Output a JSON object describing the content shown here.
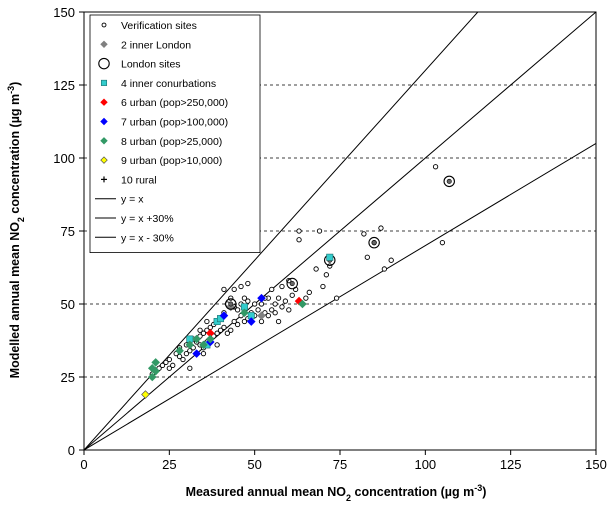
{
  "chart_data": {
    "type": "scatter",
    "xlabel": "Measured annual mean NO<sub>2</sub> concentration (µg m<sup>-3</sup>)",
    "ylabel": "Modelled annual mean NO<sub>2</sub> concentration (µg m<sup>-3</sup>)",
    "xlabel_parts": [
      "Measured annual mean NO",
      "2",
      " concentration (µg m",
      "-3",
      ")"
    ],
    "ylabel_parts": [
      "Modelled annual mean NO",
      "2",
      " concentration (µg m",
      "-3",
      ")"
    ],
    "xlim": [
      0,
      150
    ],
    "ylim": [
      0,
      150
    ],
    "xticks": [
      0,
      25,
      50,
      75,
      100,
      125,
      150
    ],
    "yticks": [
      0,
      25,
      50,
      75,
      100,
      125,
      150
    ],
    "grid": "horizontal-dashed",
    "legend_position": "top-left",
    "series": [
      {
        "name": "Verification sites",
        "marker": "small-circle",
        "color": "#000000",
        "points": [
          [
            20,
            26
          ],
          [
            21,
            27
          ],
          [
            22,
            28
          ],
          [
            23,
            29
          ],
          [
            24,
            30
          ],
          [
            25,
            28
          ],
          [
            25,
            31
          ],
          [
            26,
            29
          ],
          [
            27,
            33
          ],
          [
            28,
            32
          ],
          [
            28,
            35
          ],
          [
            29,
            31
          ],
          [
            30,
            33
          ],
          [
            30,
            36
          ],
          [
            31,
            34
          ],
          [
            32,
            35
          ],
          [
            32,
            38
          ],
          [
            33,
            33
          ],
          [
            33,
            37
          ],
          [
            34,
            36
          ],
          [
            34,
            39
          ],
          [
            35,
            35
          ],
          [
            35,
            40
          ],
          [
            36,
            37
          ],
          [
            36,
            41
          ],
          [
            37,
            38
          ],
          [
            37,
            42
          ],
          [
            38,
            39
          ],
          [
            38,
            43
          ],
          [
            39,
            40
          ],
          [
            39,
            44
          ],
          [
            40,
            41
          ],
          [
            40,
            45
          ],
          [
            41,
            42
          ],
          [
            41,
            47
          ],
          [
            42,
            40
          ],
          [
            42,
            50
          ],
          [
            43,
            41
          ],
          [
            43,
            52
          ],
          [
            44,
            44
          ],
          [
            44,
            55
          ],
          [
            45,
            43
          ],
          [
            45,
            48
          ],
          [
            46,
            46
          ],
          [
            46,
            50
          ],
          [
            47,
            44
          ],
          [
            47,
            52
          ],
          [
            48,
            45
          ],
          [
            48,
            57
          ],
          [
            49,
            47
          ],
          [
            50,
            46
          ],
          [
            50,
            50
          ],
          [
            51,
            48
          ],
          [
            52,
            44
          ],
          [
            52,
            50
          ],
          [
            53,
            47
          ],
          [
            54,
            46
          ],
          [
            54,
            52
          ],
          [
            55,
            48
          ],
          [
            55,
            55
          ],
          [
            56,
            47
          ],
          [
            56,
            50
          ],
          [
            57,
            52
          ],
          [
            58,
            49
          ],
          [
            58,
            56
          ],
          [
            59,
            51
          ],
          [
            60,
            48
          ],
          [
            60,
            58
          ],
          [
            61,
            53
          ],
          [
            62,
            55
          ],
          [
            63,
            72
          ],
          [
            63,
            75
          ],
          [
            64,
            50
          ],
          [
            65,
            52
          ],
          [
            66,
            54
          ],
          [
            68,
            62
          ],
          [
            69,
            75
          ],
          [
            70,
            56
          ],
          [
            71,
            60
          ],
          [
            72,
            63
          ],
          [
            74,
            52
          ],
          [
            82,
            74
          ],
          [
            83,
            66
          ],
          [
            85,
            71
          ],
          [
            87,
            76
          ],
          [
            88,
            62
          ],
          [
            90,
            65
          ],
          [
            103,
            97
          ],
          [
            105,
            71
          ],
          [
            31,
            28
          ],
          [
            34,
            41
          ],
          [
            36,
            44
          ],
          [
            44,
            49
          ],
          [
            46,
            56
          ],
          [
            53,
            52
          ],
          [
            57,
            44
          ],
          [
            41,
            55
          ],
          [
            39,
            36
          ],
          [
            35,
            33
          ],
          [
            48,
            51
          ]
        ]
      },
      {
        "name": "2 inner London",
        "marker": "diamond",
        "color": "#808080",
        "points": [
          [
            43,
            49
          ],
          [
            52,
            46
          ]
        ]
      },
      {
        "name": "London sites",
        "marker": "large-circle",
        "color": "#000000",
        "points": [
          [
            43,
            50
          ],
          [
            61,
            57
          ],
          [
            72,
            65
          ],
          [
            85,
            71
          ],
          [
            107,
            92
          ]
        ]
      },
      {
        "name": "4 inner conurbations",
        "marker": "square",
        "color": "#33cccc",
        "points": [
          [
            31,
            38
          ],
          [
            36,
            36
          ],
          [
            39,
            44
          ],
          [
            40,
            45
          ],
          [
            47,
            49
          ],
          [
            49,
            46
          ],
          [
            72,
            66
          ]
        ]
      },
      {
        "name": "6 urban (pop>250,000)",
        "marker": "diamond",
        "color": "#ff0000",
        "points": [
          [
            37,
            40
          ],
          [
            63,
            51
          ]
        ]
      },
      {
        "name": "7 urban (pop>100,000)",
        "marker": "diamond",
        "color": "#0000ff",
        "points": [
          [
            33,
            33
          ],
          [
            37,
            37
          ],
          [
            41,
            46
          ],
          [
            49,
            44
          ],
          [
            52,
            52
          ]
        ]
      },
      {
        "name": "8 urban (pop>25,000)",
        "marker": "diamond",
        "color": "#339966",
        "points": [
          [
            20,
            25
          ],
          [
            20,
            28
          ],
          [
            21,
            27
          ],
          [
            21,
            30
          ],
          [
            28,
            34
          ],
          [
            31,
            36
          ],
          [
            33,
            38
          ],
          [
            35,
            36
          ],
          [
            37,
            38
          ],
          [
            47,
            47
          ],
          [
            64,
            50
          ]
        ]
      },
      {
        "name": "9 urban (pop>10,000)",
        "marker": "diamond",
        "color": "#ffff00",
        "points": [
          [
            18,
            19
          ]
        ]
      },
      {
        "name": "10 rural",
        "marker": "plus",
        "color": "#000000",
        "points": []
      }
    ],
    "lines": [
      {
        "name": "y = x",
        "slope": 1.0
      },
      {
        "name": "y = x +30%",
        "slope": 1.3
      },
      {
        "name": "y = x - 30%",
        "slope": 0.7
      }
    ]
  }
}
